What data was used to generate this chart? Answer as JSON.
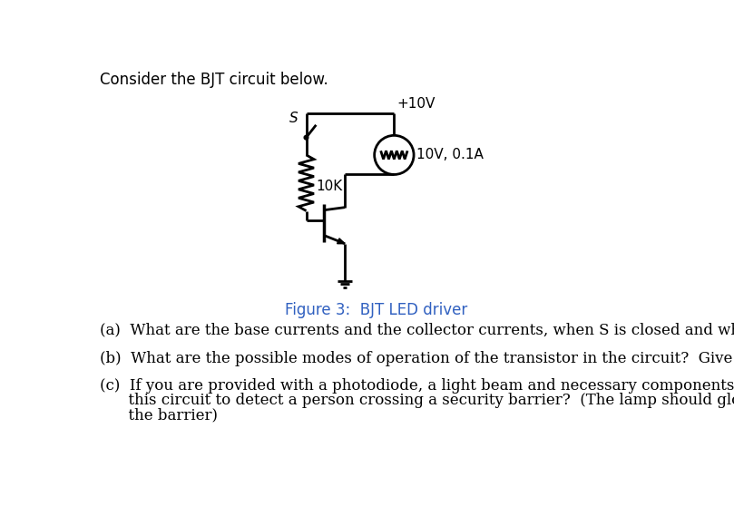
{
  "title_text": "Consider the BJT circuit below.",
  "figure_caption": "Figure 3:  BJT LED driver",
  "question_a": "(a)  What are the base currents and the collector currents, when S is closed and when S is open?",
  "question_b": "(b)  What are the possible modes of operation of the transistor in the circuit?  Give reasons to your answer.",
  "question_c_line1": "(c)  If you are provided with a photodiode, a light beam and necessary components, how would you modify",
  "question_c_line2": "      this circuit to detect a person crossing a security barrier?  (The lamp should glow when a person crosses",
  "question_c_line3": "      the barrier)",
  "bg_color": "#ffffff",
  "text_color": "#000000",
  "caption_color": "#3060c0",
  "label_10v": "+10V",
  "label_lamp": "10V, 0.1A",
  "label_10k": "10K",
  "label_s": "S"
}
